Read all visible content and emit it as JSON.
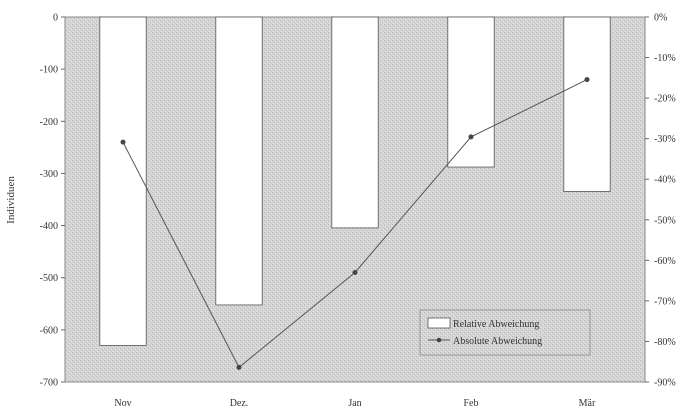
{
  "chart_data": {
    "type": "bar",
    "categories": [
      "Nov",
      "Dez.",
      "Jan",
      "Feb",
      "Mär"
    ],
    "ylabel": "Individuen",
    "ylim": [
      -700,
      0
    ],
    "yticks": [
      "0",
      "-100",
      "-200",
      "-300",
      "-400",
      "-500",
      "-600",
      "-700"
    ],
    "y2lim": [
      -0.9,
      0
    ],
    "y2ticks": [
      "0%",
      "-10%",
      "-20%",
      "-30%",
      "-40%",
      "-50%",
      "-60%",
      "-70%",
      "-80%",
      "-90%"
    ],
    "grid": false,
    "background": "stippled gray",
    "legend_position": "bottom-right",
    "series": [
      {
        "name": "Relative Abweichung",
        "kind": "bar",
        "axis": "secondary",
        "color": "#ffffff",
        "values": [
          -0.81,
          -0.71,
          -0.52,
          -0.37,
          -0.43
        ]
      },
      {
        "name": "Absolute Abweichung",
        "kind": "line",
        "axis": "primary",
        "color": "#555555",
        "values": [
          -240,
          -672,
          -490,
          -230,
          -120
        ]
      }
    ]
  }
}
